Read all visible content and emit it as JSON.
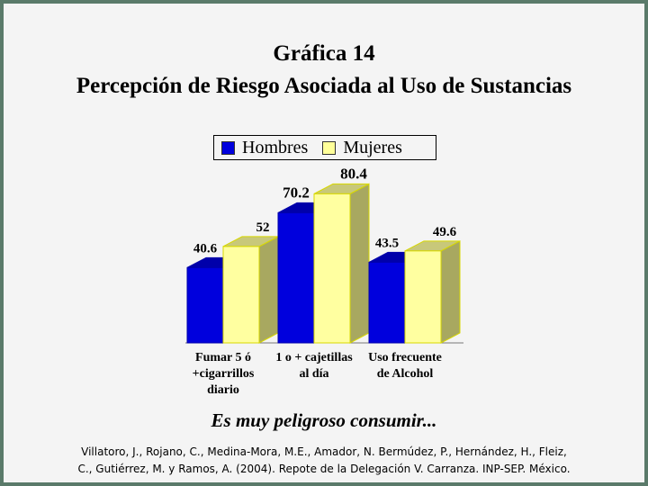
{
  "chart_data": {
    "type": "bar",
    "title": "Gráfica 14",
    "subtitle": "Percepción de Riesgo Asociada al Uso de Sustancias",
    "categories": [
      "Fumar 5 ó +cigarrillos diario",
      "1 o + cajetillas al día",
      "Uso frecuente de Alcohol"
    ],
    "category_lines": [
      [
        "Fumar 5 ó",
        "+cigarrillos",
        "diario"
      ],
      [
        "1 o + cajetillas",
        "al día"
      ],
      [
        "Uso frecuente",
        "de Alcohol"
      ]
    ],
    "series": [
      {
        "name": "Hombres",
        "values": [
          40.6,
          70.2,
          43.5
        ],
        "labels": [
          "40.6",
          "70.2",
          "43.5"
        ],
        "color": "#0000dd"
      },
      {
        "name": "Mujeres",
        "values": [
          52,
          80.4,
          49.6
        ],
        "labels": [
          "52",
          "80.4",
          "49.6"
        ],
        "color": "#ffffa0"
      }
    ],
    "ylim": [
      0,
      100
    ],
    "legend": "top",
    "grid": false,
    "annotation": "Es muy peligroso consumir...",
    "source_lines": [
      "Villatoro, J., Rojano, C., Medina-Mora, M.E., Amador, N. Bermúdez, P., Hernández, H., Fleiz,",
      "C., Gutiérrez, M. y Ramos, A. (2004). Repote de la Delegación V. Carranza. INP-SEP. México."
    ]
  }
}
